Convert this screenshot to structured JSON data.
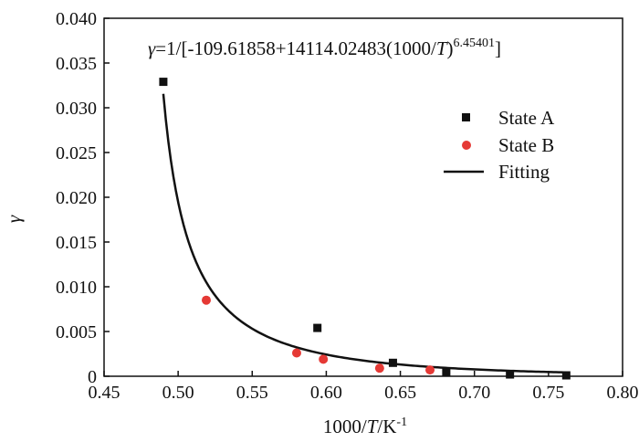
{
  "chart_data": {
    "type": "scatter",
    "xlabel_parts": [
      "1000/",
      "T",
      "/K",
      "-1"
    ],
    "ylabel": "γ",
    "xlim": [
      0.45,
      0.8
    ],
    "ylim": [
      0,
      0.04
    ],
    "x_ticks": [
      "0.45",
      "0.50",
      "0.55",
      "0.60",
      "0.65",
      "0.70",
      "0.75",
      "0.80"
    ],
    "y_ticks": [
      "0",
      "0.005",
      "0.010",
      "0.015",
      "0.020",
      "0.025",
      "0.030",
      "0.035",
      "0.040"
    ],
    "equation_parts": [
      "γ",
      "=1/[-109.61858+14114.02483(1000/",
      "T",
      ")",
      "6.45401",
      "]"
    ],
    "fit": {
      "a": -109.61858,
      "b": 14114.02483,
      "c": 6.45401,
      "x_start": 0.49,
      "x_end": 0.762
    },
    "colors": {
      "state_a": "#111111",
      "state_b": "#e53935",
      "fit": "#111111"
    },
    "series": [
      {
        "name": "State A",
        "marker": "square",
        "x": [
          0.49,
          0.594,
          0.645,
          0.681,
          0.724,
          0.762
        ],
        "y": [
          0.0329,
          0.0054,
          0.0015,
          0.0005,
          0.0002,
          0.0001
        ]
      },
      {
        "name": "State B",
        "marker": "circle",
        "x": [
          0.519,
          0.58,
          0.598,
          0.636,
          0.67
        ],
        "y": [
          0.0085,
          0.0026,
          0.0019,
          0.0009,
          0.0007
        ]
      },
      {
        "name": "Fitting",
        "marker": "line"
      }
    ]
  }
}
